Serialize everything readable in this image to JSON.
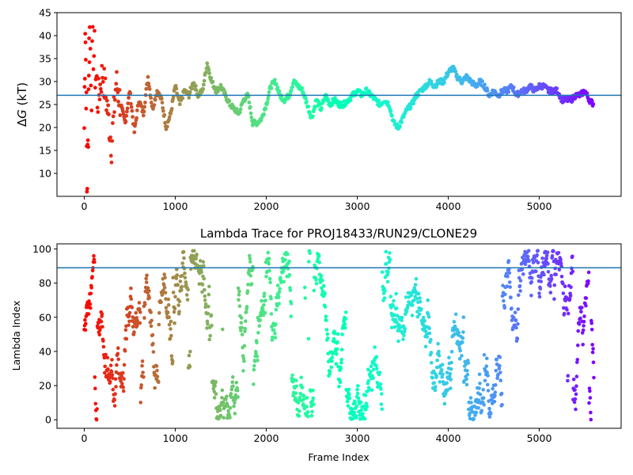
{
  "chart_data": [
    {
      "type": "scatter",
      "title": "",
      "xlabel": "",
      "ylabel_prefix": "Δ",
      "ylabel_symbol": "G",
      "ylabel_suffix": " (kT)",
      "xlim": [
        -300,
        5900
      ],
      "ylim": [
        5,
        45
      ],
      "xticks": [
        0,
        1000,
        2000,
        3000,
        4000,
        5000
      ],
      "xtick_labels": [
        "0",
        "1000",
        "2000",
        "3000",
        "4000",
        "5000"
      ],
      "yticks": [
        10,
        15,
        20,
        25,
        30,
        35,
        40,
        45
      ],
      "ytick_labels": [
        "10",
        "15",
        "20",
        "25",
        "30",
        "35",
        "40",
        "45"
      ],
      "grid": false,
      "colormap": "rainbow (colored by frame index, red at 0 to violet at end)",
      "reference_line": {
        "y": 27,
        "color": "#1f77b4"
      },
      "series": [
        {
          "x": [
            0,
            10,
            20,
            30,
            40,
            50,
            60,
            80,
            100,
            120,
            150,
            200,
            250,
            300,
            350,
            400,
            450,
            500,
            550,
            600,
            650,
            700,
            750,
            800,
            850,
            900,
            950,
            1000,
            1050,
            1100,
            1150,
            1200,
            1250,
            1300,
            1350,
            1400,
            1450,
            1500,
            1550,
            1600,
            1650,
            1700,
            1750,
            1800,
            1850,
            1900,
            1950,
            2000,
            2050,
            2100,
            2150,
            2200,
            2250,
            2300,
            2350,
            2400,
            2450,
            2500,
            2550,
            2600,
            2650,
            2700,
            2750,
            2800,
            2850,
            2900,
            2950,
            3000,
            3050,
            3100,
            3150,
            3200,
            3250,
            3300,
            3350,
            3400,
            3450,
            3500,
            3550,
            3600,
            3650,
            3700,
            3750,
            3800,
            3850,
            3900,
            3950,
            4000,
            4050,
            4100,
            4150,
            4200,
            4250,
            4300,
            4350,
            4400,
            4450,
            4500,
            4550,
            4600,
            4650,
            4700,
            4750,
            4800,
            4850,
            4900,
            4950,
            5000,
            5050,
            5100,
            5150,
            5200,
            5250,
            5300,
            5350,
            5400,
            5450,
            5500,
            5550,
            5600
          ],
          "y": [
            20,
            44,
            30,
            7,
            15,
            35,
            41,
            30,
            38,
            33,
            26,
            32,
            25,
            16,
            30,
            25,
            21,
            28,
            19,
            26,
            23,
            31,
            24,
            28,
            26,
            20,
            23,
            29,
            25,
            28,
            27,
            30,
            27,
            28,
            34,
            30,
            28,
            29,
            27,
            25,
            24,
            23,
            26,
            27,
            21,
            21,
            22,
            25,
            29,
            30,
            27,
            26,
            27,
            30,
            29,
            28,
            25,
            22,
            26,
            24,
            27,
            25,
            26,
            25,
            25,
            26,
            27,
            28,
            27,
            28,
            27,
            26,
            25,
            26,
            25,
            21,
            20,
            22,
            24,
            25,
            27,
            28,
            29,
            30,
            29,
            30,
            30,
            32,
            33,
            31,
            30,
            31,
            30,
            29,
            30,
            29,
            27,
            28,
            27,
            28,
            28,
            29,
            27,
            28,
            28,
            29,
            28,
            29,
            29,
            28,
            28,
            28,
            26,
            26,
            26,
            27,
            27,
            28,
            26,
            25
          ]
        }
      ]
    },
    {
      "type": "scatter",
      "title": "Lambda Trace for PROJ18433/RUN29/CLONE29",
      "xlabel": "Frame Index",
      "ylabel": "Lambda Index",
      "xlim": [
        -300,
        5900
      ],
      "ylim": [
        -5,
        103
      ],
      "xticks": [
        0,
        1000,
        2000,
        3000,
        4000,
        5000
      ],
      "xtick_labels": [
        "0",
        "1000",
        "2000",
        "3000",
        "4000",
        "5000"
      ],
      "yticks": [
        0,
        20,
        40,
        60,
        80,
        100
      ],
      "ytick_labels": [
        "0",
        "20",
        "40",
        "60",
        "80",
        "100"
      ],
      "grid": false,
      "colormap": "rainbow (colored by frame index, red at 0 to violet at end)",
      "reference_line": {
        "y": 89,
        "color": "#1f77b4"
      },
      "series": [
        {
          "x": [
            0,
            5600
          ],
          "y_range": [
            0,
            99
          ],
          "x_step": 4,
          "note_distribution": "random walk over lambda indices 0-99 for each frame 0-5600"
        }
      ]
    }
  ],
  "colors": {
    "reference_line": "#1f77b4",
    "axes": "#000000",
    "background": "#ffffff"
  }
}
